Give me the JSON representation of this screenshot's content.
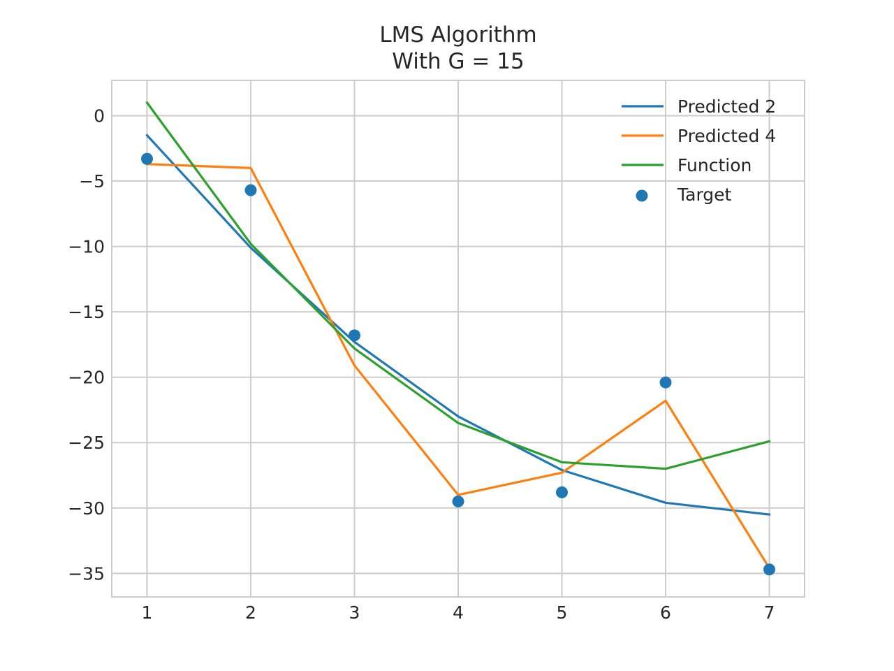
{
  "chart_data": {
    "type": "line",
    "title": "LMS Algorithm",
    "subtitle": "With G = 15",
    "xlabel": "",
    "ylabel": "",
    "x": [
      1,
      2,
      3,
      4,
      5,
      6,
      7
    ],
    "xlim": [
      0.66,
      7.34
    ],
    "ylim": [
      -36.8,
      2.7
    ],
    "xticks": [
      1,
      2,
      3,
      4,
      5,
      6,
      7
    ],
    "yticks": [
      0,
      -5,
      -10,
      -15,
      -20,
      -25,
      -30,
      -35
    ],
    "ytick_labels": [
      "0",
      "−5",
      "−10",
      "−15",
      "−20",
      "−25",
      "−30",
      "−35"
    ],
    "grid": true,
    "legend_position": "top-right",
    "series": [
      {
        "name": "Predicted 2",
        "kind": "line",
        "color": "#1f77b4",
        "values": [
          -1.5,
          -10.1,
          -17.3,
          -23.0,
          -27.1,
          -29.6,
          -30.5
        ]
      },
      {
        "name": "Predicted 4",
        "kind": "line",
        "color": "#ff7f0e",
        "values": [
          -3.7,
          -4.0,
          -19.1,
          -29.0,
          -27.3,
          -21.8,
          -34.6
        ]
      },
      {
        "name": "Function",
        "kind": "line",
        "color": "#2ca02c",
        "values": [
          1.0,
          -9.8,
          -17.8,
          -23.5,
          -26.5,
          -27.0,
          -24.9
        ]
      },
      {
        "name": "Target",
        "kind": "scatter",
        "color": "#1f77b4",
        "values": [
          -3.3,
          -5.7,
          -16.8,
          -29.5,
          -28.8,
          -20.4,
          -34.7
        ]
      }
    ]
  }
}
